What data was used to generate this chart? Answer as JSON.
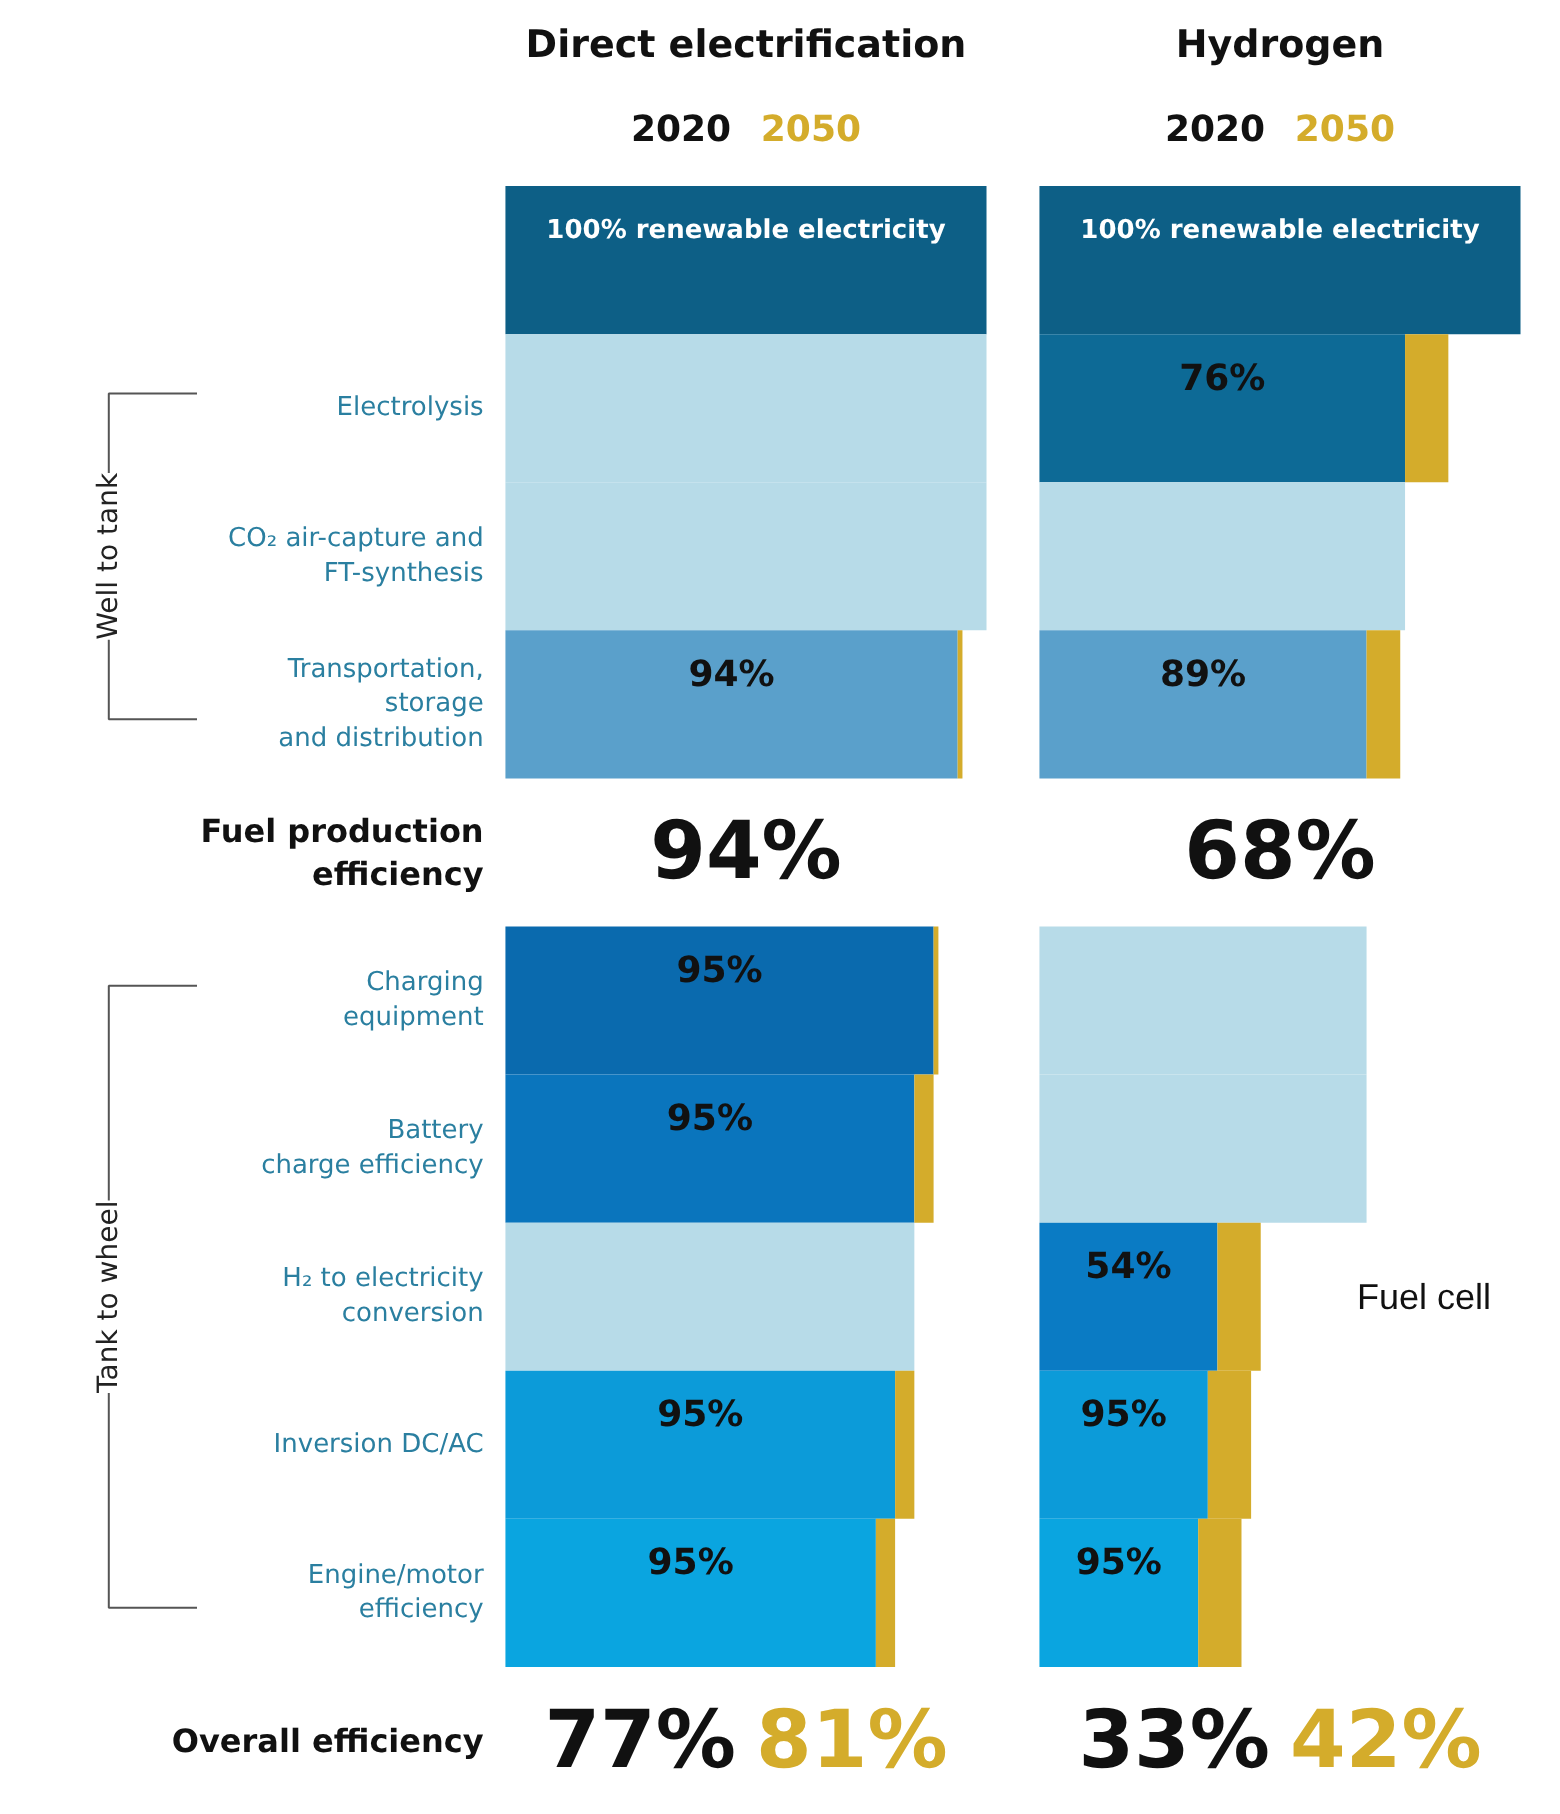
{
  "chart_data": [
    {
      "type": "bar",
      "title": "Direct electrification",
      "orientation": "horizontal",
      "stacked": true,
      "legend": "top",
      "tick_labels": "y",
      "categories": [
        null,
        "Electrolysis",
        "CO₂ air-capture and\nFT-synthesis",
        "Transportation,\nstorage\nand distribution",
        "Fuel production\nefficiency",
        "Charging\nequipment",
        "Battery\ncharge efficiency",
        "H₂ to electricity\nconversion",
        "Inversion DC/AC",
        "Engine/motor\nefficiency",
        "Overall efficiency"
      ],
      "series": [
        {
          "name": "2020",
          "values": [
            100,
            100,
            100,
            94,
            null,
            89,
            85,
            85,
            81,
            77,
            null
          ],
          "colors": [
            "#0d5f86",
            "#b7dbe8",
            "#b7dbe8",
            "#5aa0cb",
            "#ffffff",
            "#0a6aae",
            "#0a75bd",
            "#b7dbe8",
            "#0c9bd9",
            "#0aa5e0",
            "#ffffff"
          ],
          "value_labels": [
            "100% renewable electricity",
            null,
            null,
            null,
            "94%",
            null,
            null,
            null,
            null,
            null,
            "77%"
          ]
        },
        {
          "name": "2050",
          "color": "#d4ac2b",
          "values": [
            null,
            null,
            null,
            1,
            null,
            1,
            4,
            null,
            4,
            4,
            null
          ],
          "value_labels": [
            null,
            null,
            null,
            null,
            null,
            null,
            null,
            null,
            null,
            null,
            "81%"
          ]
        }
      ],
      "annotations": [
        "Well to tank",
        "Tank to wheel",
        "94%",
        "95%",
        "95%",
        "95%",
        "95%"
      ]
    },
    {
      "type": "bar",
      "title": "Hydrogen",
      "orientation": "horizontal",
      "stacked": true,
      "legend": "top",
      "tick_labels": false,
      "categories": [
        null,
        "Electrolysis",
        "CO₂ air-capture and\nFT-synthesis",
        "Transportation,\nstorage\nand distribution",
        "Fuel production\nefficiency",
        "Charging\nequipment",
        "Battery\ncharge efficiency",
        "H₂ to electricity\nconversion",
        "Inversion DC/AC",
        "Engine/motor\nefficiency",
        "Overall efficiency"
      ],
      "series": [
        {
          "name": "2020",
          "values": [
            100,
            76,
            76,
            68,
            null,
            68,
            68,
            37,
            35,
            33,
            null
          ],
          "colors": [
            "#0d5f86",
            "#0d6a96",
            "#b7dbe8",
            "#5aa0cb",
            "#ffffff",
            "#b7dbe8",
            "#b7dbe8",
            "#0a7bc4",
            "#0c9bd9",
            "#0aa5e0",
            "#ffffff"
          ],
          "value_labels": [
            "100% renewable electricity",
            null,
            null,
            null,
            "68%",
            null,
            null,
            null,
            null,
            null,
            "33%"
          ]
        },
        {
          "name": "2050",
          "color": "#d4ac2b",
          "values": [
            null,
            9,
            null,
            7,
            null,
            null,
            null,
            9,
            9,
            9,
            null
          ],
          "value_labels": [
            null,
            null,
            null,
            null,
            null,
            null,
            null,
            null,
            null,
            null,
            "42%"
          ]
        }
      ],
      "annotations": [
        "76%",
        "89%",
        "54%",
        "95%",
        "95%",
        {
          "text": "Fuel cell",
          "x": 46,
          "y": "H₂ to electricity\nconversion"
        }
      ]
    }
  ]
}
